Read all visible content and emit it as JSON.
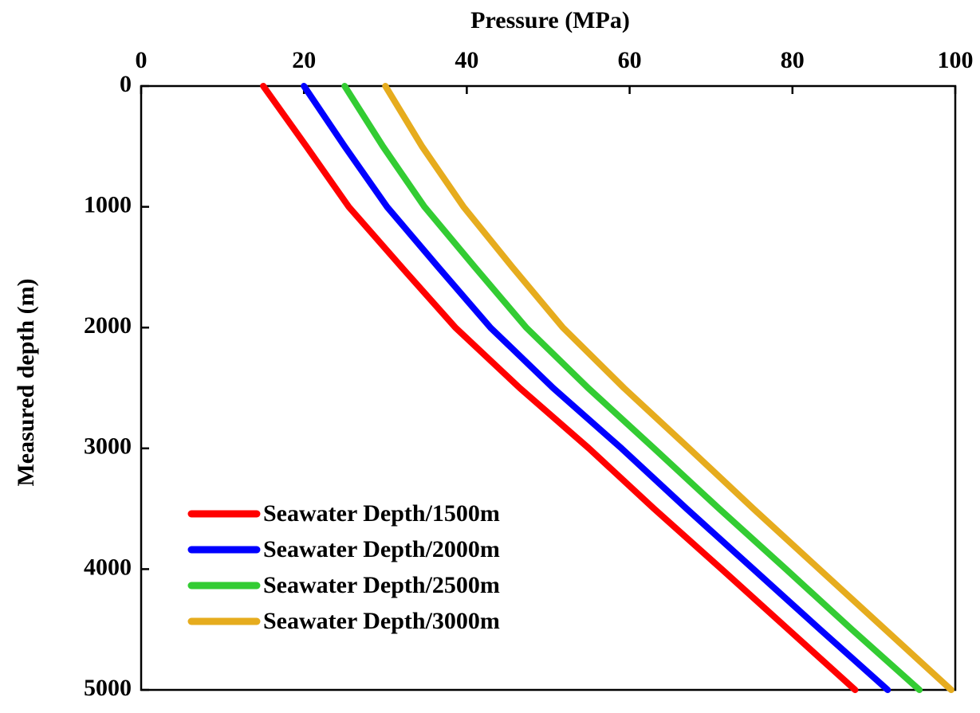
{
  "chart_data": {
    "type": "line",
    "x_label": "Pressure (MPa)",
    "y_label": "Measured depth (m)",
    "y": [
      0,
      500,
      1000,
      1500,
      2000,
      2500,
      3000,
      3500,
      4000,
      4500,
      5000
    ],
    "series": [
      {
        "name": "Seawater Depth/1500m",
        "color": "#ff0000",
        "values": [
          15,
          20.3,
          25.5,
          32,
          38.6,
          46.5,
          55,
          63,
          71.3,
          79.5,
          87.7
        ]
      },
      {
        "name": "Seawater Depth/2000m",
        "color": "#0000ff",
        "values": [
          20,
          25,
          30.2,
          36.5,
          42.9,
          50.6,
          59,
          67,
          75.2,
          83.4,
          91.7
        ]
      },
      {
        "name": "Seawater Depth/2500m",
        "color": "#33cc33",
        "values": [
          25,
          29.7,
          34.8,
          41,
          47.3,
          54.9,
          63,
          71,
          79.2,
          87.3,
          95.6
        ]
      },
      {
        "name": "Seawater Depth/3000m",
        "color": "#e6ac1e",
        "values": [
          30,
          34.5,
          39.6,
          45.6,
          51.8,
          59.3,
          67.3,
          75.2,
          83.3,
          91.4,
          99.5
        ]
      }
    ],
    "xlim": [
      0,
      100
    ],
    "xticks": [
      0,
      20,
      40,
      60,
      80,
      100
    ],
    "ylim": [
      0,
      5000
    ],
    "yticks": [
      0,
      1000,
      2000,
      3000,
      4000,
      5000
    ],
    "y_inverted": true,
    "x_axis_position": "top",
    "legend": "lower left"
  }
}
